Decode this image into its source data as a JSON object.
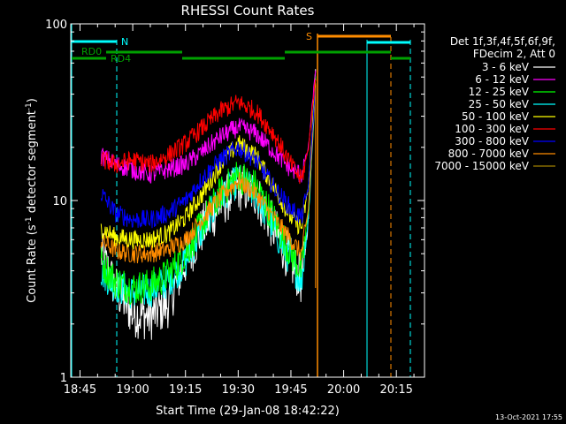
{
  "chart_data": {
    "type": "line",
    "title": "RHESSI Count Rates",
    "xlabel": "Start Time (29-Jan-08 18:42:22)",
    "ylabel_main": "Count Rate (s",
    "ylabel_sup1": "-1",
    "ylabel_mid": " detector segment",
    "ylabel_sup2": "-1",
    "ylabel_end": ")",
    "y_scale": "log",
    "ylim": [
      1,
      100
    ],
    "xlim": [
      "18:42:22",
      "20:23:00"
    ],
    "x_ticks": [
      "18:45",
      "19:00",
      "19:15",
      "19:30",
      "19:45",
      "20:00",
      "20:15"
    ],
    "y_ticks": [
      "1",
      "10",
      "100"
    ],
    "grid": false,
    "legend_placement": "right",
    "legend_header": [
      "Det 1f,3f,4f,5f,6f,9f,",
      "FDecim 2, Att 0"
    ],
    "series": [
      {
        "name": "3 - 6 keV",
        "color": "#ffffff",
        "x": [
          "18:51",
          "18:55",
          "19:00",
          "19:05",
          "19:10",
          "19:15",
          "19:20",
          "19:25",
          "19:30",
          "19:35",
          "19:40",
          "19:45",
          "19:48",
          "19:50",
          "19:52"
        ],
        "values": [
          5,
          3.2,
          2.3,
          2.2,
          2.6,
          4.5,
          7,
          9.5,
          12,
          11,
          7,
          4.5,
          3.5,
          8,
          60
        ]
      },
      {
        "name": "6 - 12 keV",
        "color": "#ff00ff",
        "x": [
          "18:51",
          "18:55",
          "19:00",
          "19:05",
          "19:10",
          "19:15",
          "19:20",
          "19:25",
          "19:30",
          "19:35",
          "19:40",
          "19:45",
          "19:48",
          "19:50",
          "19:52"
        ],
        "values": [
          18,
          16,
          15,
          14,
          15,
          16,
          19,
          23,
          26,
          24,
          19,
          15,
          14,
          20,
          55
        ]
      },
      {
        "name": "12 - 25 keV",
        "color": "#00ff00",
        "x": [
          "18:51",
          "18:55",
          "19:00",
          "19:05",
          "19:10",
          "19:15",
          "19:20",
          "19:25",
          "19:30",
          "19:35",
          "19:40",
          "19:45",
          "19:48",
          "19:50",
          "19:52"
        ],
        "values": [
          4.5,
          3.5,
          3.2,
          3.3,
          3.8,
          5,
          7.5,
          11,
          14,
          12,
          8,
          5,
          4,
          9,
          50
        ]
      },
      {
        "name": "25 - 50 keV",
        "color": "#00ffff",
        "x": [
          "18:51",
          "18:55",
          "19:00",
          "19:05",
          "19:10",
          "19:15",
          "19:20",
          "19:25",
          "19:30",
          "19:35",
          "19:40",
          "19:45",
          "19:48",
          "19:50",
          "19:52"
        ],
        "values": [
          4,
          3.3,
          3,
          3.1,
          3.5,
          4.5,
          7,
          10.5,
          13,
          11,
          7,
          4.5,
          3.5,
          8,
          45
        ]
      },
      {
        "name": "50 - 100 keV",
        "color": "#ffff00",
        "x": [
          "18:51",
          "18:55",
          "19:00",
          "19:05",
          "19:10",
          "19:15",
          "19:20",
          "19:25",
          "19:30",
          "19:35",
          "19:40",
          "19:45",
          "19:48",
          "19:50",
          "19:52"
        ],
        "values": [
          7,
          6.2,
          6,
          6,
          6.5,
          8,
          11,
          16,
          21,
          18,
          12,
          8,
          7,
          12,
          50
        ]
      },
      {
        "name": "100 - 300 keV",
        "color": "#ff0000",
        "x": [
          "18:51",
          "18:55",
          "19:00",
          "19:05",
          "19:10",
          "19:15",
          "19:20",
          "19:25",
          "19:30",
          "19:35",
          "19:40",
          "19:45",
          "19:48",
          "19:50",
          "19:52"
        ],
        "values": [
          17,
          16,
          17,
          16,
          18,
          21,
          26,
          32,
          36,
          32,
          24,
          16,
          13,
          20,
          50
        ]
      },
      {
        "name": "300 - 800 keV",
        "color": "#0000ff",
        "x": [
          "18:51",
          "18:55",
          "19:00",
          "19:05",
          "19:10",
          "19:15",
          "19:20",
          "19:25",
          "19:30",
          "19:35",
          "19:40",
          "19:45",
          "19:48",
          "19:50",
          "19:52"
        ],
        "values": [
          11,
          8.5,
          7.8,
          7.8,
          8.5,
          10,
          13.5,
          17,
          20,
          17,
          12,
          9,
          8,
          12,
          45
        ]
      },
      {
        "name": "800 - 7000 keV",
        "color": "#ff8c00",
        "x": [
          "18:51",
          "18:55",
          "19:00",
          "19:05",
          "19:10",
          "19:15",
          "19:20",
          "19:25",
          "19:30",
          "19:35",
          "19:40",
          "19:45",
          "19:48",
          "19:50",
          "19:52"
        ],
        "values": [
          6,
          5.2,
          5,
          5,
          5.3,
          6,
          8,
          10.5,
          13,
          11,
          8,
          6,
          5,
          9,
          45
        ]
      },
      {
        "name": "7000 - 15000 keV",
        "color": "#a08000",
        "x": [],
        "values": []
      }
    ],
    "annotations": [
      {
        "label": "RD0",
        "color": "#00a000"
      },
      {
        "label": "RD4",
        "color": "#00a000"
      },
      {
        "label": "N",
        "color": "#00ffff"
      },
      {
        "label": "S",
        "color": "#ff8c00"
      }
    ]
  },
  "footer": {
    "timestamp": "13-Oct-2021 17:55"
  }
}
